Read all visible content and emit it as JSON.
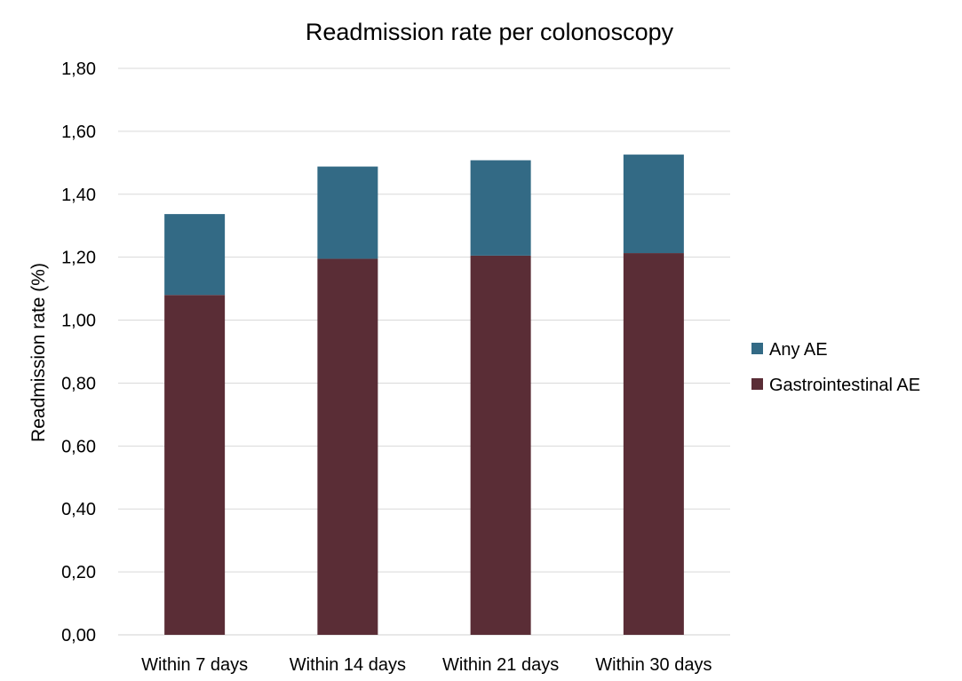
{
  "chart_data": {
    "type": "bar",
    "stacked": true,
    "title": "Readmission rate per colonoscopy",
    "xlabel": "",
    "ylabel": "Readmission rate (%)",
    "ylim": [
      0,
      1.8
    ],
    "yticks": [
      "0,00",
      "0,20",
      "0,40",
      "0,60",
      "0,80",
      "1,00",
      "1,20",
      "1,40",
      "1,60",
      "1,80"
    ],
    "categories": [
      "Within 7 days",
      "Within 14 days",
      "Within 21 days",
      "Within 30 days"
    ],
    "series": [
      {
        "name": "Gastrointestinal AE",
        "values": [
          1.08,
          1.195,
          1.205,
          1.213
        ],
        "color": "#5a2d36"
      },
      {
        "name": "Any AE",
        "values": [
          0.257,
          0.293,
          0.303,
          0.313
        ],
        "color": "#336a85"
      }
    ],
    "grid": true,
    "legend": "right"
  }
}
